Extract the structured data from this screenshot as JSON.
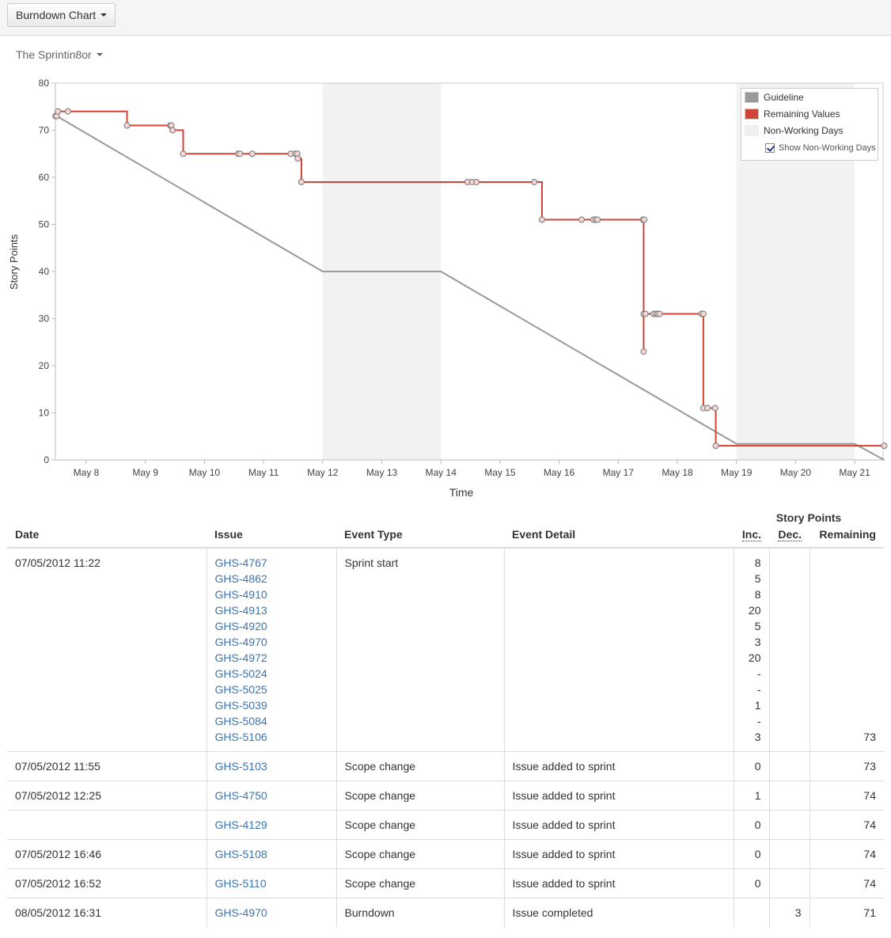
{
  "toolbar": {
    "report_button_label": "Burndown Chart"
  },
  "sprint_selector": {
    "label": "The Sprintin8or"
  },
  "legend": {
    "items": [
      {
        "label": "Guideline",
        "color": "#999999"
      },
      {
        "label": "Remaining Values",
        "color": "#d04437"
      },
      {
        "label": "Non-Working Days",
        "color": "#f0f0f0"
      }
    ],
    "show_non_working_days_label": "Show Non-Working Days",
    "show_non_working_days_checked": true
  },
  "chart_data": {
    "type": "line",
    "title": "",
    "xlabel": "Time",
    "ylabel": "Story Points",
    "ylim": [
      0,
      80
    ],
    "yticks": [
      0,
      10,
      20,
      30,
      40,
      50,
      60,
      70,
      80
    ],
    "xticks": [
      "May 8",
      "May 9",
      "May 10",
      "May 11",
      "May 12",
      "May 13",
      "May 14",
      "May 15",
      "May 16",
      "May 17",
      "May 18",
      "May 19",
      "May 20",
      "May 21"
    ],
    "grid": false,
    "legend_position": "top-right",
    "non_working_days": [
      [
        "May 12",
        "May 14"
      ],
      [
        "May 19",
        "May 21"
      ]
    ],
    "series": [
      {
        "name": "Guideline",
        "color": "#999999",
        "points": [
          [
            7.5,
            73
          ],
          [
            12.0,
            40
          ],
          [
            14.0,
            40
          ],
          [
            19.0,
            3.4
          ],
          [
            21.0,
            3.4
          ],
          [
            21.5,
            0
          ]
        ]
      },
      {
        "name": "Remaining Values",
        "color": "#d04437",
        "step": true,
        "points": [
          [
            7.48,
            73
          ],
          [
            7.5,
            73
          ],
          [
            7.52,
            74
          ],
          [
            7.69,
            74
          ],
          [
            8.69,
            71
          ],
          [
            9.42,
            71
          ],
          [
            9.44,
            71
          ],
          [
            9.46,
            70
          ],
          [
            9.64,
            65
          ],
          [
            10.57,
            65
          ],
          [
            10.6,
            65
          ],
          [
            10.81,
            65
          ],
          [
            11.46,
            65
          ],
          [
            11.54,
            65
          ],
          [
            11.57,
            65
          ],
          [
            11.58,
            64
          ],
          [
            11.64,
            59
          ],
          [
            14.45,
            59
          ],
          [
            14.53,
            59
          ],
          [
            14.6,
            59
          ],
          [
            15.58,
            59
          ],
          [
            15.71,
            51
          ],
          [
            16.38,
            51
          ],
          [
            16.58,
            51
          ],
          [
            16.62,
            51
          ],
          [
            16.65,
            51
          ],
          [
            17.42,
            51
          ],
          [
            17.44,
            51
          ],
          [
            17.43,
            31
          ],
          [
            17.46,
            31
          ],
          [
            17.6,
            31
          ],
          [
            17.64,
            31
          ],
          [
            17.67,
            31
          ],
          [
            17.7,
            31
          ],
          [
            18.41,
            31
          ],
          [
            18.44,
            31
          ],
          [
            17.43,
            23
          ],
          [
            18.44,
            11
          ],
          [
            18.51,
            11
          ],
          [
            18.64,
            11
          ],
          [
            18.65,
            3
          ],
          [
            21.5,
            3
          ]
        ]
      }
    ]
  },
  "table": {
    "group_header": "Story Points",
    "columns": [
      "Date",
      "Issue",
      "Event Type",
      "Event Detail",
      "Inc.",
      "Dec.",
      "Remaining"
    ],
    "rows": [
      {
        "date": "07/05/2012 11:22",
        "issues": [
          "GHS-4767",
          "GHS-4862",
          "GHS-4910",
          "GHS-4913",
          "GHS-4920",
          "GHS-4970",
          "GHS-4972",
          "GHS-5024",
          "GHS-5025",
          "GHS-5039",
          "GHS-5084",
          "GHS-5106"
        ],
        "event_type": "Sprint start",
        "event_detail": "",
        "inc": [
          "8",
          "5",
          "8",
          "20",
          "5",
          "3",
          "20",
          "-",
          "-",
          "1",
          "-",
          "3"
        ],
        "dec": "",
        "remaining": "73"
      },
      {
        "date": "07/05/2012 11:55",
        "issue": "GHS-5103",
        "event_type": "Scope change",
        "event_detail": "Issue added to sprint",
        "inc": "0",
        "dec": "",
        "remaining": "73"
      },
      {
        "date": "07/05/2012 12:25",
        "issue": "GHS-4750",
        "event_type": "Scope change",
        "event_detail": "Issue added to sprint",
        "inc": "1",
        "dec": "",
        "remaining": "74"
      },
      {
        "date": "",
        "issue": "GHS-4129",
        "event_type": "Scope change",
        "event_detail": "Issue added to sprint",
        "inc": "0",
        "dec": "",
        "remaining": "74"
      },
      {
        "date": "07/05/2012 16:46",
        "issue": "GHS-5108",
        "event_type": "Scope change",
        "event_detail": "Issue added to sprint",
        "inc": "0",
        "dec": "",
        "remaining": "74"
      },
      {
        "date": "07/05/2012 16:52",
        "issue": "GHS-5110",
        "event_type": "Scope change",
        "event_detail": "Issue added to sprint",
        "inc": "0",
        "dec": "",
        "remaining": "74"
      },
      {
        "date": "08/05/2012 16:31",
        "issue": "GHS-4970",
        "event_type": "Burndown",
        "event_detail": "Issue completed",
        "inc": "",
        "dec": "3",
        "remaining": "71"
      }
    ]
  }
}
